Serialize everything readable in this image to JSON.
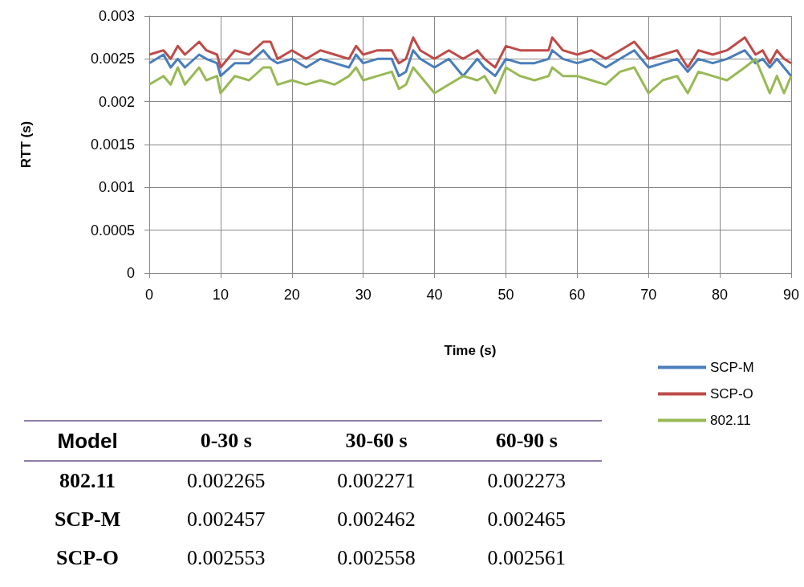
{
  "chart_data": {
    "type": "line",
    "xlabel": "Time (s)",
    "ylabel": "RTT (s)",
    "xlim": [
      0,
      90
    ],
    "xticks": [
      0,
      10,
      20,
      30,
      40,
      50,
      60,
      70,
      80,
      90
    ],
    "ylim": [
      0,
      0.003
    ],
    "yticks": [
      0,
      0.0005,
      0.001,
      0.0015,
      0.002,
      0.0025,
      0.003
    ],
    "grid": true,
    "legend": "bottom right",
    "marker": "none",
    "line_style": "solid",
    "x": [
      0,
      2,
      3,
      4,
      5,
      7,
      8,
      9.5,
      10,
      12,
      14,
      16,
      17,
      18,
      20,
      22,
      24,
      26,
      28,
      29,
      30,
      32,
      34,
      35,
      36,
      37,
      38,
      40,
      42,
      44,
      46,
      47,
      48.5,
      50,
      52,
      54,
      56,
      56.5,
      58,
      60,
      62,
      64,
      66,
      68,
      70,
      72,
      74,
      75.5,
      77,
      79,
      81,
      83.5,
      85,
      86,
      87,
      88,
      89,
      90
    ],
    "series": [
      {
        "name": "SCP-M",
        "color": "#4a7ebb",
        "values": [
          0.00245,
          0.00255,
          0.0024,
          0.0025,
          0.0024,
          0.00255,
          0.0025,
          0.00245,
          0.0023,
          0.00245,
          0.00245,
          0.0026,
          0.0025,
          0.00245,
          0.0025,
          0.0024,
          0.0025,
          0.00245,
          0.0024,
          0.00255,
          0.00245,
          0.0025,
          0.0025,
          0.0023,
          0.00235,
          0.0026,
          0.0025,
          0.0024,
          0.0025,
          0.0023,
          0.0025,
          0.0024,
          0.0023,
          0.0025,
          0.00245,
          0.00245,
          0.0025,
          0.0026,
          0.0025,
          0.00245,
          0.0025,
          0.0024,
          0.0025,
          0.0026,
          0.0024,
          0.00245,
          0.0025,
          0.00235,
          0.0025,
          0.00245,
          0.0025,
          0.0026,
          0.00245,
          0.0025,
          0.0024,
          0.0025,
          0.0024,
          0.0023
        ]
      },
      {
        "name": "SCP-O",
        "color": "#be4b48",
        "values": [
          0.00255,
          0.0026,
          0.0025,
          0.00265,
          0.00255,
          0.0027,
          0.0026,
          0.00255,
          0.0024,
          0.0026,
          0.00255,
          0.0027,
          0.0027,
          0.0025,
          0.0026,
          0.0025,
          0.0026,
          0.00255,
          0.0025,
          0.00265,
          0.00255,
          0.0026,
          0.0026,
          0.00245,
          0.0025,
          0.00275,
          0.0026,
          0.0025,
          0.0026,
          0.0025,
          0.0026,
          0.0025,
          0.0024,
          0.00265,
          0.0026,
          0.0026,
          0.0026,
          0.00275,
          0.0026,
          0.00255,
          0.0026,
          0.0025,
          0.0026,
          0.0027,
          0.0025,
          0.00255,
          0.0026,
          0.0024,
          0.0026,
          0.00255,
          0.0026,
          0.00275,
          0.00255,
          0.0026,
          0.00245,
          0.0026,
          0.0025,
          0.00245
        ]
      },
      {
        "name": "802.11",
        "color": "#98b954",
        "values": [
          0.0022,
          0.0023,
          0.0022,
          0.0024,
          0.0022,
          0.0024,
          0.00225,
          0.0023,
          0.0021,
          0.0023,
          0.00225,
          0.0024,
          0.0024,
          0.0022,
          0.00225,
          0.0022,
          0.00225,
          0.0022,
          0.0023,
          0.0024,
          0.00225,
          0.0023,
          0.00235,
          0.00215,
          0.0022,
          0.0024,
          0.0023,
          0.0021,
          0.0022,
          0.0023,
          0.00225,
          0.0023,
          0.0021,
          0.0024,
          0.0023,
          0.00225,
          0.0023,
          0.0024,
          0.0023,
          0.0023,
          0.00225,
          0.0022,
          0.00235,
          0.0024,
          0.0021,
          0.00225,
          0.0023,
          0.0021,
          0.00235,
          0.0023,
          0.00225,
          0.0024,
          0.0025,
          0.0023,
          0.0021,
          0.0023,
          0.0021,
          0.0023
        ]
      }
    ],
    "annotations": [
      "Model",
      "0-30 s",
      "30-60 s",
      "60-90 s",
      "802.11",
      "0.002265",
      "0.002271",
      "0.002273",
      "SCP-M",
      "0.002457",
      "0.002462",
      "0.002465",
      "SCP-O",
      "0.002553",
      "0.002558",
      "0.002561"
    ]
  }
}
